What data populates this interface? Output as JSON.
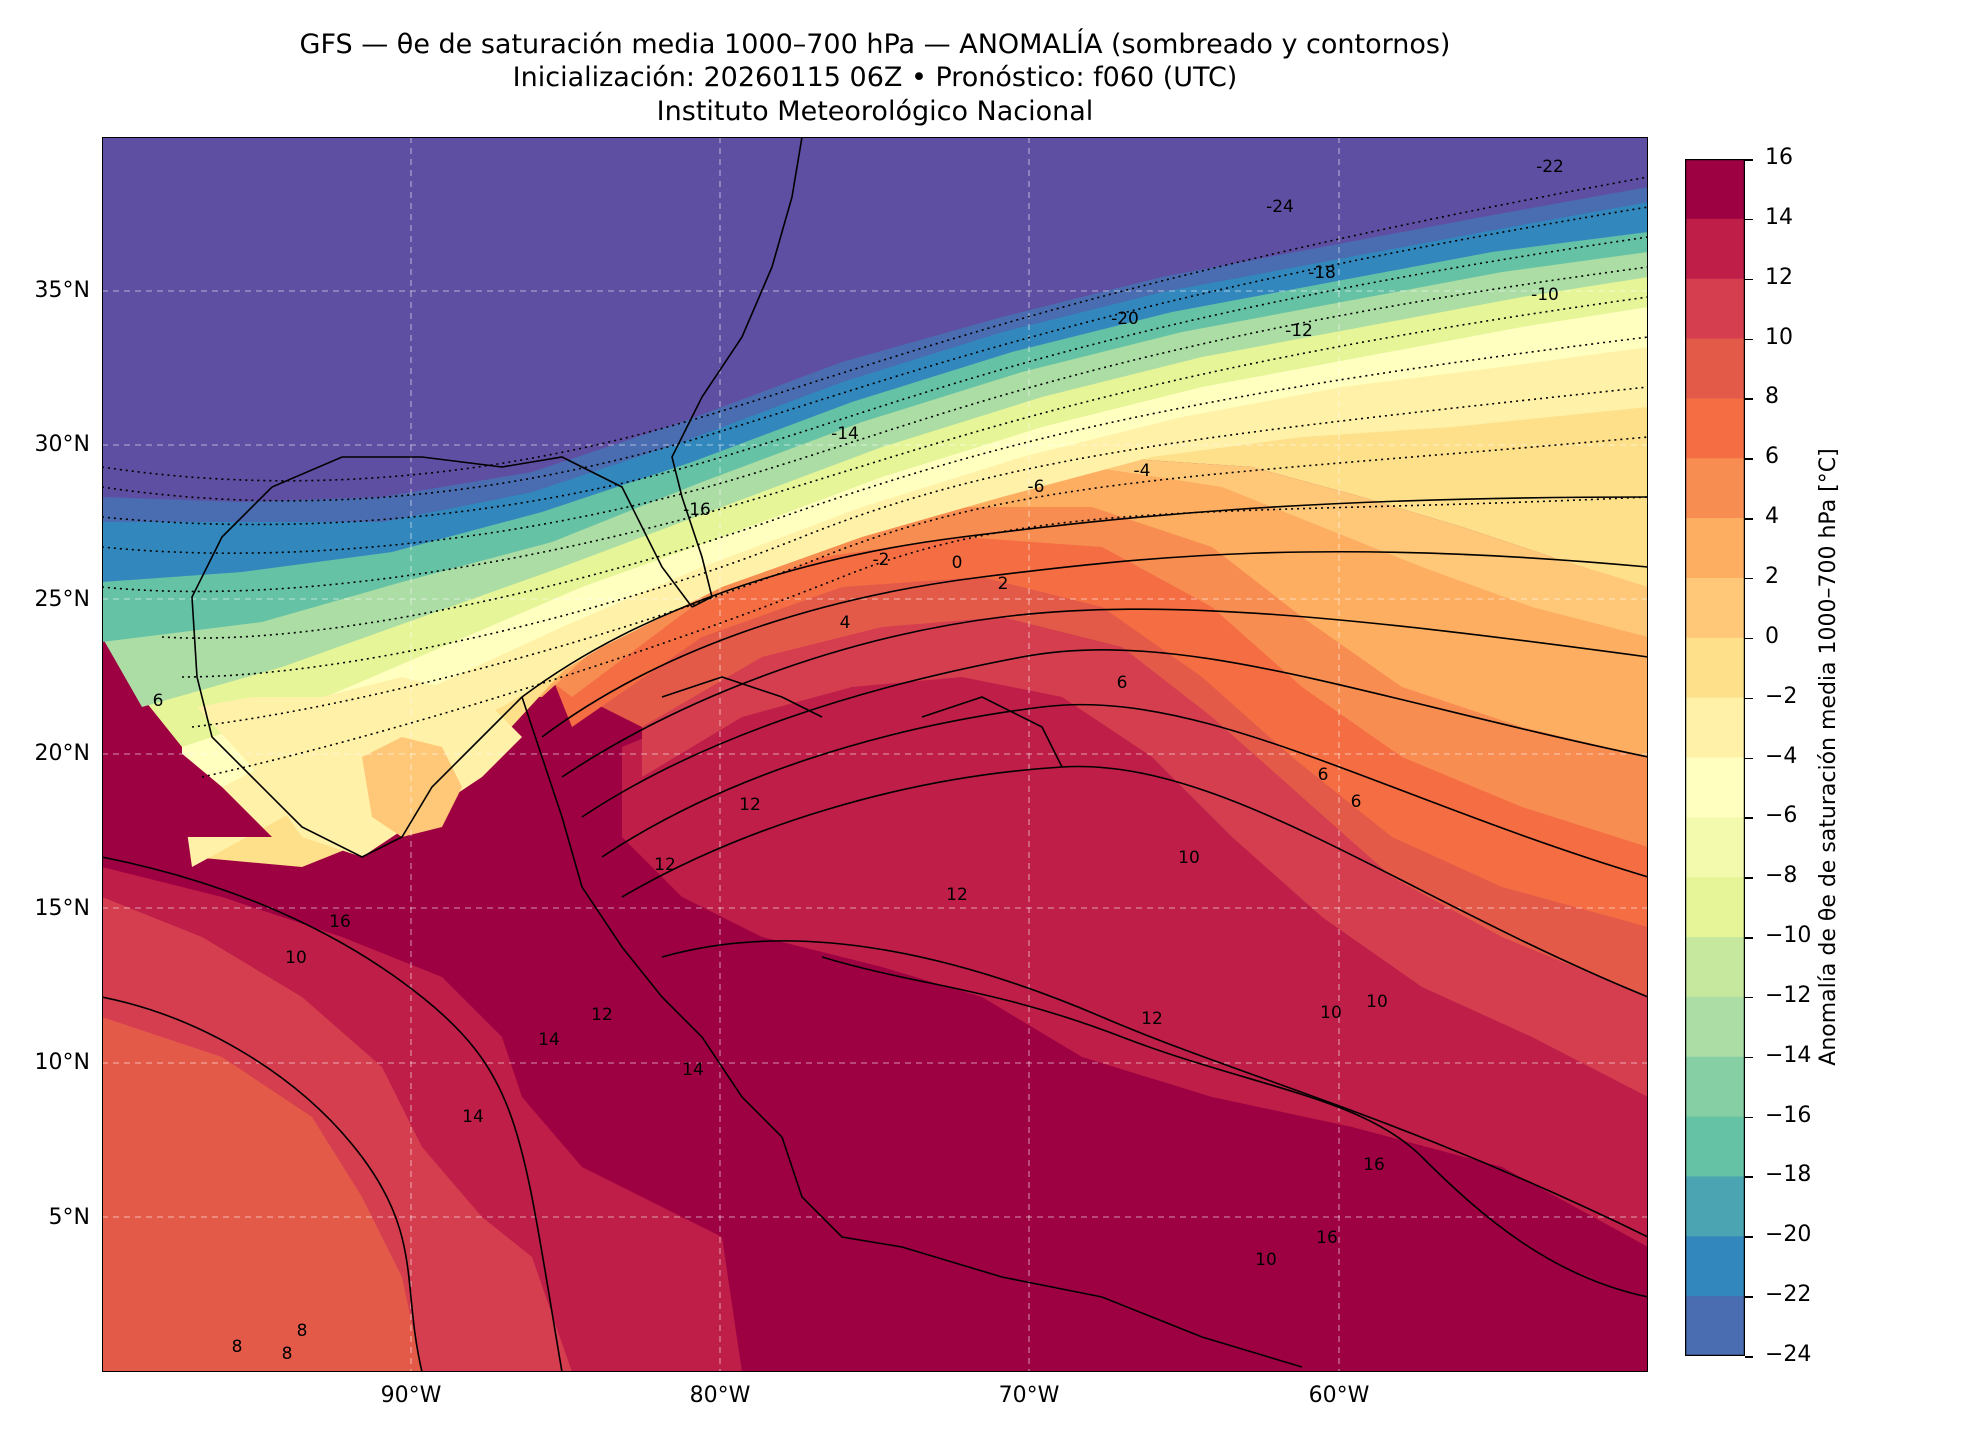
{
  "header": {
    "line1": "GFS — θe de saturación media 1000–700 hPa — ANOMALÍA (sombreado y contornos)",
    "line2": "Inicialización: 20260115 06Z   •   Pronóstico: f060 (UTC)",
    "line3": "Instituto Meteorológico Nacional"
  },
  "map": {
    "lon_range": [
      -100,
      -50
    ],
    "lat_range": [
      0,
      40
    ],
    "lat_ticks": [
      "35°N",
      "30°N",
      "25°N",
      "20°N",
      "15°N",
      "10°N",
      "5°N"
    ],
    "lon_ticks": [
      "90°W",
      "80°W",
      "70°W",
      "60°W"
    ],
    "gridlines": true,
    "contour_labels": [
      "-24",
      "-22",
      "-20",
      "-18",
      "-16",
      "-14",
      "-12",
      "-10",
      "-6",
      "-4",
      "-2",
      "0",
      "2",
      "4",
      "6",
      "6",
      "6",
      "6",
      "8",
      "8",
      "8",
      "10",
      "10",
      "10",
      "10",
      "10",
      "12",
      "12",
      "12",
      "12",
      "12",
      "14",
      "14",
      "14",
      "16",
      "16",
      "16"
    ]
  },
  "colorbar": {
    "label": "Anomalía de θe de saturación media 1000–700 hPa [°C]",
    "ticks": [
      "16",
      "14",
      "12",
      "10",
      "8",
      "6",
      "4",
      "2",
      "0",
      "−2",
      "−4",
      "−6",
      "−8",
      "−10",
      "−12",
      "−14",
      "−16",
      "−18",
      "−20",
      "−22",
      "−24"
    ],
    "colors": [
      "#9e0142",
      "#be1e48",
      "#d53e4f",
      "#e45a49",
      "#f46d43",
      "#f88d52",
      "#fdae61",
      "#fec878",
      "#fee08b",
      "#fff1a8",
      "#ffffbf",
      "#f3faad",
      "#e6f598",
      "#c6e79e",
      "#abdda4",
      "#86cea4",
      "#66c2a5",
      "#4ba4b1",
      "#3288bd",
      "#4a6cb0",
      "#5e4fa2"
    ]
  }
}
